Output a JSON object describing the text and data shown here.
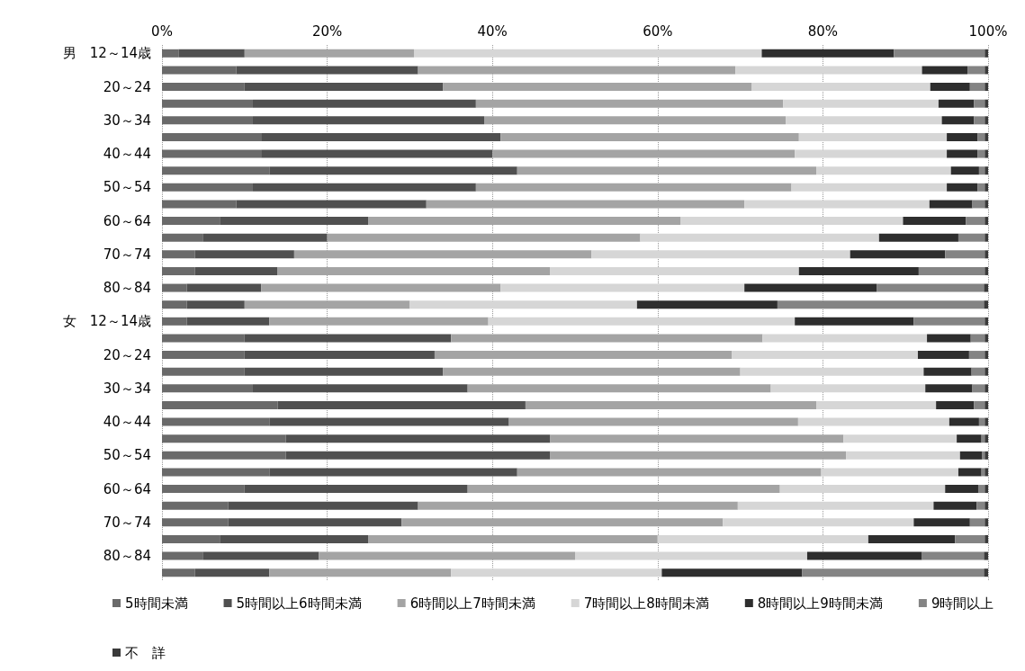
{
  "chart_data": {
    "type": "bar",
    "orientation": "horizontal",
    "stacked": true,
    "categories": [
      "男　12～14歳",
      null,
      "20～24",
      null,
      "30～34",
      null,
      "40～44",
      null,
      "50～54",
      null,
      "60～64",
      null,
      "70～74",
      null,
      "80～84",
      null,
      "女　12～14歳",
      null,
      "20～24",
      null,
      "30～34",
      null,
      "40～44",
      null,
      "50～54",
      null,
      "60～64",
      null,
      "70～74",
      null,
      "80～84",
      null
    ],
    "series": [
      {
        "name": "5時間未満",
        "color": "#6a6a6a",
        "values": [
          2,
          9,
          10,
          11,
          11,
          12,
          12,
          13,
          11,
          9,
          7,
          5,
          4,
          4,
          3,
          3,
          3,
          10,
          10,
          10,
          11,
          14,
          13,
          15,
          15,
          13,
          10,
          8,
          8,
          7,
          5,
          4
        ]
      },
      {
        "name": "5時間以上6時間未満",
        "color": "#505050",
        "values": [
          8,
          22,
          24,
          27,
          28,
          29,
          28,
          30,
          27,
          23,
          18,
          15,
          12,
          10,
          9,
          7,
          10,
          25,
          23,
          24,
          26,
          30,
          29,
          32,
          32,
          30,
          27,
          23,
          21,
          18,
          14,
          9
        ]
      },
      {
        "name": "6時間以上7時間未満",
        "color": "#a4a4a4",
        "values": [
          20.5,
          38.4,
          37.4,
          37.2,
          36.5,
          36.1,
          36.6,
          36.2,
          38.2,
          38.5,
          37.8,
          37.9,
          36,
          33,
          29,
          20,
          26.5,
          37.7,
          36,
          36,
          36.7,
          35.2,
          35,
          35.5,
          35.8,
          36.8,
          37.8,
          38.7,
          38.9,
          35,
          31,
          22
        ]
      },
      {
        "name": "7時間以上8時間未満",
        "color": "#d6d6d6",
        "values": [
          42.1,
          22.6,
          21.6,
          18.8,
          18.9,
          17.9,
          18.4,
          16.3,
          18.8,
          22.4,
          26.9,
          28.9,
          31.3,
          30.1,
          29.5,
          27.5,
          37.1,
          19.9,
          22.5,
          22.2,
          18.7,
          14.5,
          18.3,
          13.7,
          13.8,
          16.6,
          20,
          23.7,
          23.1,
          25.5,
          28.1,
          25.5
        ]
      },
      {
        "name": "8時間以上9時間未満",
        "color": "#2e2e2e",
        "values": [
          16,
          5.5,
          4.8,
          4.3,
          3.9,
          3.7,
          3.7,
          3.4,
          3.7,
          5.2,
          7.6,
          9.6,
          11.5,
          14.5,
          16,
          17,
          14.4,
          5.3,
          6.2,
          5.8,
          5.7,
          4.6,
          3.6,
          3,
          2.7,
          2.8,
          4,
          5.2,
          6.8,
          10.5,
          13.9,
          17
        ]
      },
      {
        "name": "9時間以上",
        "color": "#848484",
        "values": [
          11,
          2.1,
          1.8,
          1.3,
          1.3,
          0.9,
          0.9,
          0.7,
          0.9,
          1.5,
          2.3,
          3.2,
          4.8,
          8,
          13,
          25,
          8.6,
          1.7,
          1.9,
          1.6,
          1.5,
          1.3,
          0.7,
          0.4,
          0.3,
          0.4,
          0.8,
          1,
          1.8,
          3.6,
          7.5,
          22
        ]
      },
      {
        "name": "不　詳",
        "color": "#3a3a3a",
        "values": [
          0.4,
          0.4,
          0.4,
          0.4,
          0.4,
          0.4,
          0.4,
          0.4,
          0.4,
          0.4,
          0.4,
          0.4,
          0.4,
          0.4,
          0.5,
          0.5,
          0.4,
          0.4,
          0.4,
          0.4,
          0.4,
          0.4,
          0.4,
          0.4,
          0.4,
          0.4,
          0.4,
          0.4,
          0.4,
          0.4,
          0.5,
          0.5
        ]
      }
    ],
    "xlim": [
      0,
      100
    ],
    "xticks": [
      {
        "value": 0,
        "label": "0%"
      },
      {
        "value": 20,
        "label": "20%"
      },
      {
        "value": 40,
        "label": "40%"
      },
      {
        "value": 60,
        "label": "60%"
      },
      {
        "value": 80,
        "label": "80%"
      },
      {
        "value": 100,
        "label": "100%"
      }
    ],
    "grid": "x",
    "legend": "bottom"
  }
}
